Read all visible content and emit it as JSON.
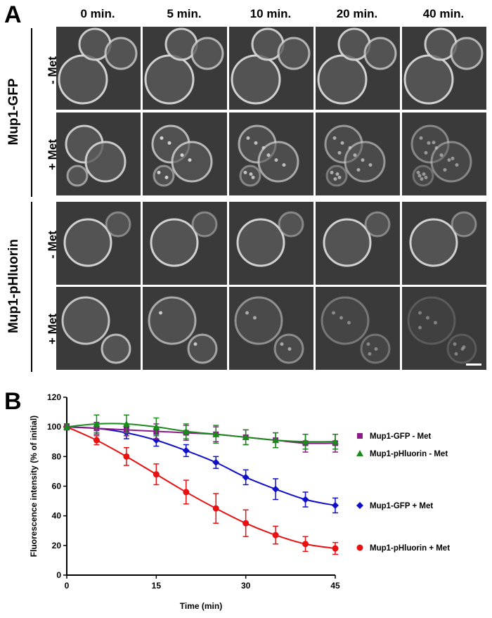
{
  "panel_a": {
    "label": "A",
    "time_points": [
      "0 min.",
      "5 min.",
      "10 min.",
      "20 min.",
      "40 min."
    ],
    "groups": [
      {
        "name": "Mup1-GFP",
        "rows": [
          "- Met",
          "+ Met"
        ]
      },
      {
        "name": "Mup1-pHluorin",
        "rows": [
          "- Met",
          "+ Met"
        ]
      }
    ]
  },
  "panel_b": {
    "label": "B"
  },
  "chart_data": {
    "type": "line",
    "xlabel": "Time (min)",
    "ylabel": "Fluorescence intensity (% of initial)",
    "xlim": [
      0,
      45
    ],
    "ylim": [
      0,
      120
    ],
    "xticks": [
      0,
      15,
      30,
      45
    ],
    "yticks": [
      0,
      20,
      40,
      60,
      80,
      100,
      120
    ],
    "x": [
      0,
      5,
      10,
      15,
      20,
      25,
      30,
      35,
      40,
      45
    ],
    "legend_position": "right",
    "series": [
      {
        "name": "Mup1-GFP - Met",
        "color": "#8b1a8b",
        "marker": "square",
        "values": [
          100,
          99,
          98,
          97,
          96,
          95,
          93,
          91,
          89,
          89
        ],
        "errors": [
          2,
          4,
          4,
          5,
          5,
          5,
          5,
          5,
          6,
          6
        ]
      },
      {
        "name": "Mup1-pHluorin - Met",
        "color": "#1a8a1a",
        "marker": "triangle",
        "values": [
          100,
          102,
          102,
          100,
          97,
          95,
          93,
          91,
          90,
          90
        ],
        "errors": [
          2,
          6,
          6,
          6,
          5,
          6,
          5,
          5,
          5,
          5
        ]
      },
      {
        "name": "Mup1-GFP + Met",
        "color": "#1010c8",
        "marker": "diamond",
        "values": [
          100,
          99,
          96,
          91,
          84,
          76,
          66,
          58,
          51,
          47
        ],
        "errors": [
          2,
          4,
          4,
          4,
          4,
          4,
          5,
          7,
          5,
          5
        ]
      },
      {
        "name": "Mup1-pHluorin + Met",
        "color": "#e81010",
        "marker": "circle",
        "values": [
          100,
          91,
          80,
          68,
          56,
          45,
          35,
          27,
          21,
          18
        ],
        "errors": [
          2,
          3,
          6,
          7,
          8,
          10,
          9,
          6,
          5,
          4
        ]
      }
    ]
  }
}
